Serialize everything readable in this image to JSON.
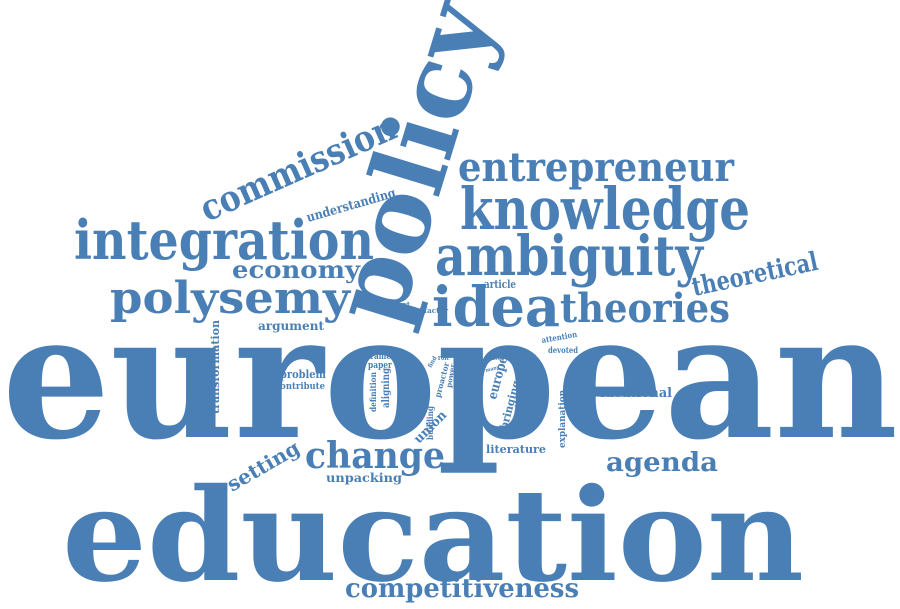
{
  "colors": {
    "word": "#4a7fb5",
    "background": "#ffffff"
  },
  "words": {
    "european": "european",
    "education": "education",
    "policy": "policy",
    "knowledge": "knowledge",
    "entrepreneur": "entrepreneur",
    "integration": "integration",
    "ambiguity": "ambiguity",
    "idea": "idea",
    "commission": "commission",
    "polysemy": "polysemy",
    "theories": "theories",
    "theoretical": "theoretical",
    "change": "change",
    "agenda": "agenda",
    "competitiveness": "competitiveness",
    "economy": "economy",
    "setting": "setting",
    "understanding": "understanding",
    "argument": "argument",
    "transformation": "transformation",
    "problem": "problem",
    "contribute": "contribute",
    "frame": "frame",
    "paper": "paper",
    "definition": "definition",
    "aligning": "aligning",
    "building": "building",
    "union": "union",
    "unpacking": "unpacking",
    "literature": "literature",
    "europe": "europe",
    "bringing": "bringing",
    "explanation": "explanation",
    "ideational": "ideational",
    "article": "article",
    "context": "context",
    "factor": "factor",
    "attention": "attention",
    "devoted": "devoted",
    "driver": "driver",
    "role": "role",
    "power": "power",
    "proactor": "proactor",
    "find": "find",
    "goal": "goal",
    "many": "many"
  }
}
